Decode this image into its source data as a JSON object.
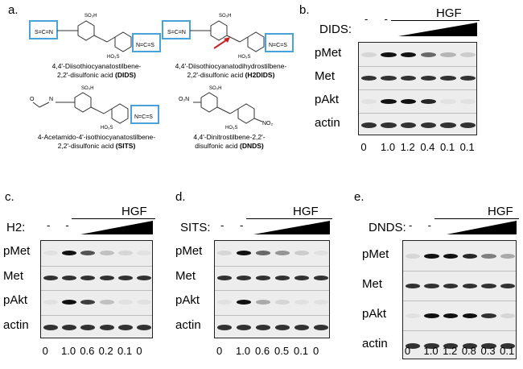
{
  "panel_a": {
    "letter": "a.",
    "compounds": [
      {
        "name_line1": "4,4'-Diisothiocyanatostilbene-",
        "name_line2": "2,2'-disulfonic acid",
        "abbr": "(DIDS)"
      },
      {
        "name_line1": "4,4'-Diisothiocyanatodihydrostilbene-",
        "name_line2": "2,2'-disulfonic acid",
        "abbr": "(H2DIDS)"
      },
      {
        "name_line1": "4-Acetamido-4'-isothiocyanatostilbene-",
        "name_line2": "2,2'-disulfonic acid",
        "abbr": "(SITS)"
      },
      {
        "name_line1": "4,4'-Dinitrostilbene-2,2'-",
        "name_line2": "disulfonic acid",
        "abbr": "(DNDS)"
      }
    ]
  },
  "panels": [
    {
      "letter": "b.",
      "hgf": "HGF",
      "drug": "DIDS:",
      "dash1": "-",
      "dash2": "-",
      "rows": [
        "pMet",
        "Met",
        "pAkt",
        "actin"
      ],
      "ratios": [
        "0",
        "1.0",
        "1.2",
        "0.4",
        "0.1",
        "0.1"
      ],
      "pmet_intensity": [
        0.1,
        1.0,
        1.0,
        0.6,
        0.25,
        0.15
      ],
      "pakt_intensity": [
        0.05,
        1.0,
        1.0,
        0.9,
        0.05,
        0.05
      ]
    },
    {
      "letter": "c.",
      "hgf": "HGF",
      "drug": "H2:",
      "dash1": "-",
      "dash2": "-",
      "rows": [
        "pMet",
        "Met",
        "pAkt",
        "actin"
      ],
      "ratios": [
        "0",
        "1.0",
        "0.6",
        "0.2",
        "0.1",
        "0"
      ],
      "pmet_intensity": [
        0.05,
        1.0,
        0.7,
        0.2,
        0.1,
        0.05
      ],
      "pakt_intensity": [
        0.05,
        1.0,
        0.8,
        0.2,
        0.05,
        0.05
      ]
    },
    {
      "letter": "d.",
      "hgf": "HGF",
      "drug": "SITS:",
      "dash1": "-",
      "dash2": "-",
      "rows": [
        "pMet",
        "Met",
        "pAkt",
        "actin"
      ],
      "ratios": [
        "0",
        "1.0",
        "0.6",
        "0.5",
        "0.1",
        "0"
      ],
      "pmet_intensity": [
        0.1,
        1.0,
        0.6,
        0.4,
        0.15,
        0.05
      ],
      "pakt_intensity": [
        0.05,
        1.0,
        0.3,
        0.1,
        0.05,
        0.05
      ]
    },
    {
      "letter": "e.",
      "hgf": "HGF",
      "drug": "DNDS:",
      "dash1": "-",
      "dash2": "-",
      "rows": [
        "pMet",
        "Met",
        "pAkt",
        "actin"
      ],
      "ratios": [
        "0",
        "1.0",
        "1.2",
        "0.8",
        "0.3",
        "0.1"
      ],
      "pmet_intensity": [
        0.1,
        1.0,
        1.0,
        0.9,
        0.5,
        0.3
      ],
      "pakt_intensity": [
        0.05,
        1.0,
        1.0,
        1.0,
        0.85,
        0.1
      ]
    }
  ],
  "colors": {
    "highlight_box": "#4aa3d8",
    "arrow": "#cc2222",
    "band": "#111111"
  }
}
